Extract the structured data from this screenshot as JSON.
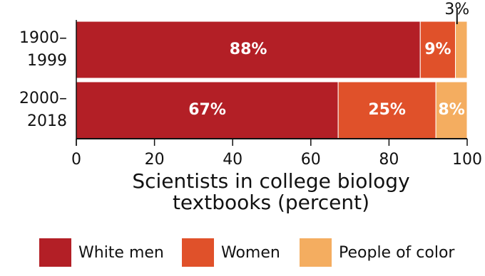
{
  "chart_data": {
    "type": "stacked-bar",
    "orientation": "horizontal",
    "categories": [
      "1900–1999",
      "2000–2018"
    ],
    "series": [
      {
        "name": "White men",
        "color": "#b31f26",
        "values": [
          88,
          67
        ],
        "value_labels": [
          "88%",
          "67%"
        ]
      },
      {
        "name": "Women",
        "color": "#e0512a",
        "values": [
          9,
          25
        ],
        "value_labels": [
          "9%",
          "25%"
        ]
      },
      {
        "name": "People of color",
        "color": "#f4ad60",
        "values": [
          3,
          8
        ],
        "value_labels": [
          "3%",
          "8%"
        ]
      }
    ],
    "x_label": "Scientists in college biology textbooks (percent)",
    "xlim": [
      0,
      100
    ],
    "xticks": [
      0,
      20,
      40,
      60,
      80,
      100
    ],
    "legend": "bottom"
  }
}
